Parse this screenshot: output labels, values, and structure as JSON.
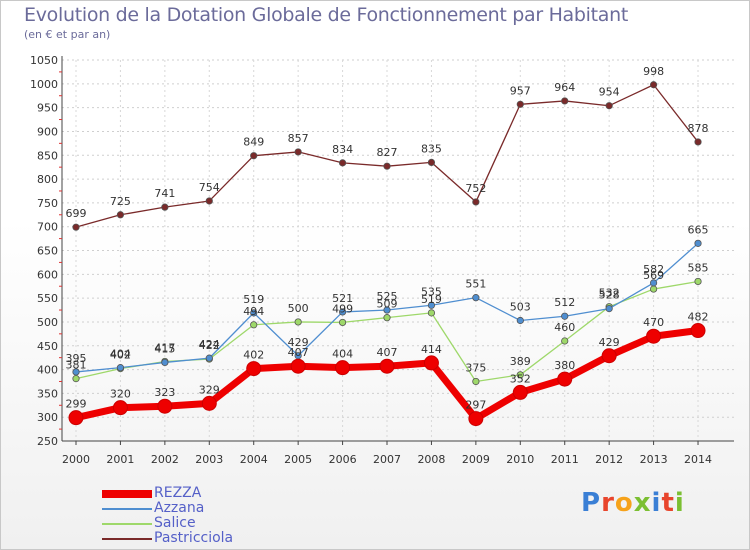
{
  "header": {
    "title": "Evolution de la Dotation Globale de Fonctionnement par Habitant",
    "subtitle": "(en € et par an)"
  },
  "logo": {
    "text": "Proxiti",
    "colors": [
      "#3a7fd5",
      "#e8452c",
      "#f6a21a",
      "#7bbf32",
      "#3a7fd5",
      "#e8452c",
      "#7bbf32"
    ]
  },
  "chart_data": {
    "type": "line",
    "title": "Evolution de la Dotation Globale de Fonctionnement par Habitant",
    "subtitle": "(en € et par an)",
    "x": [
      "2000",
      "2001",
      "2002",
      "2003",
      "2004",
      "2005",
      "2006",
      "2007",
      "2008",
      "2009",
      "2010",
      "2011",
      "2012",
      "2013",
      "2014"
    ],
    "ylim": [
      250,
      1050
    ],
    "yticks": [
      250,
      300,
      350,
      400,
      450,
      500,
      550,
      600,
      650,
      700,
      750,
      800,
      850,
      900,
      950,
      1000,
      1050
    ],
    "grid": true,
    "legend_position": "bottom-left",
    "series": [
      {
        "name": "REZZA",
        "color": "#ee0000",
        "values": [
          299,
          320,
          323,
          329,
          402,
          407,
          404,
          407,
          414,
          297,
          352,
          380,
          429,
          470,
          482
        ],
        "labels": [
          "299",
          "320",
          "323",
          "329",
          "402",
          "407",
          "404",
          "407",
          "414",
          "297",
          "352",
          "380",
          "429",
          "470",
          "482"
        ]
      },
      {
        "name": "Azzana",
        "color": "#4f8ed0",
        "values": [
          395,
          404,
          415,
          424,
          519,
          429,
          521,
          525,
          535,
          551,
          503,
          512,
          528,
          582,
          665
        ],
        "labels": [
          "395",
          "404",
          "415",
          "424",
          "519",
          "429",
          "521",
          "525",
          "535",
          "551",
          "503",
          "512",
          "528",
          "582",
          "665"
        ]
      },
      {
        "name": "Salice",
        "color": "#9ed86a",
        "values": [
          381,
          402,
          417,
          422,
          494,
          500,
          499,
          509,
          519,
          375,
          389,
          460,
          532,
          569,
          585
        ],
        "labels": [
          "381",
          "402",
          "417",
          "422",
          "494",
          "500",
          "499",
          "509",
          "519",
          "375",
          "389",
          "460",
          "532",
          "569",
          "585"
        ]
      },
      {
        "name": "Pastricciola",
        "color": "#7a2a2a",
        "values": [
          699,
          725,
          741,
          754,
          849,
          857,
          834,
          827,
          835,
          752,
          957,
          964,
          954,
          998,
          878
        ],
        "labels": [
          "699",
          "725",
          "741",
          "754",
          "849",
          "857",
          "834",
          "827",
          "835",
          "752",
          "957",
          "964",
          "954",
          "998",
          "878"
        ]
      }
    ]
  }
}
